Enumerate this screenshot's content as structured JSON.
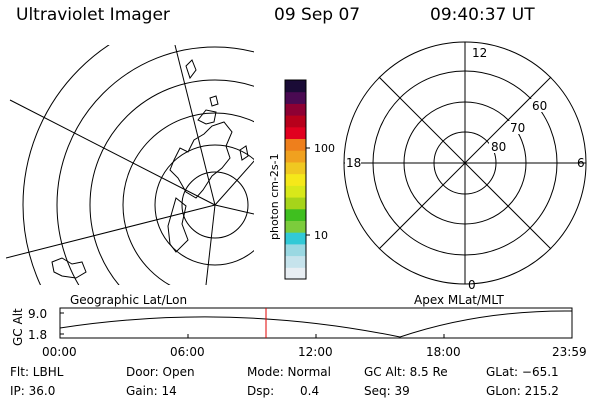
{
  "header": {
    "title": "Ultraviolet Imager",
    "date": "09 Sep 07",
    "time": "09:40:37 UT"
  },
  "colorbar": {
    "unit_label": "photon cm-2s-1",
    "ticks": [
      "100",
      "10"
    ],
    "colors": [
      "#e8eef3",
      "#c6e3ec",
      "#9ad8e2",
      "#32c9d6",
      "#7ccc3c",
      "#3fbf1f",
      "#a6d41a",
      "#d8e81a",
      "#f5e81a",
      "#f0c821",
      "#f0a11f",
      "#ee7f1c",
      "#e1001f",
      "#b7001b",
      "#8d0033",
      "#4a0a52",
      "#1a0b36"
    ]
  },
  "polar_plot": {
    "mlt_labels": [
      "12",
      "6",
      "18",
      "0"
    ],
    "lat_labels": [
      "60",
      "70",
      "80"
    ]
  },
  "panel_labels": {
    "left": "Geographic Lat/Lon",
    "right": "Apex MLat/MLT"
  },
  "altitude_plot": {
    "axis_title": "GC Alt",
    "y_ticks": [
      "9.0",
      "1.8"
    ],
    "x_ticks": [
      "00:00",
      "06:00",
      "12:00",
      "18:00",
      "23:59"
    ],
    "marker_color": "#e00000"
  },
  "info": {
    "filter": "Flt: LBHL",
    "door": "Door: Open",
    "mode": "Mode: Normal",
    "gc_alt": "GC Alt: 8.5 Re",
    "glat": "GLat: −65.1",
    "ip": "IP: 36.0",
    "gain": "Gain: 14",
    "dsp_label": "Dsp:",
    "dsp_value": "0.4",
    "seq": "Seq: 39",
    "glon": "GLon: 215.2"
  }
}
